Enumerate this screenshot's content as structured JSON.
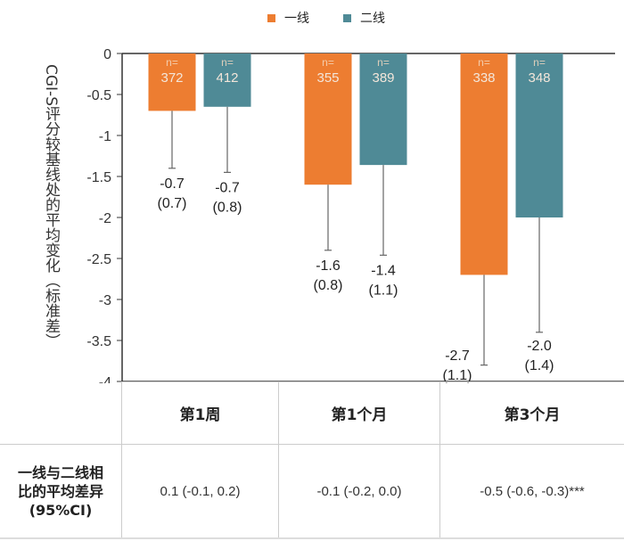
{
  "chart_data": {
    "type": "bar",
    "ylabel": "CGI-S评分较基线处的平均变化（标准差）",
    "ylim": [
      -4,
      0
    ],
    "yticks": [
      "0",
      "-0.5",
      "-1",
      "-1.5",
      "-2",
      "-2.5",
      "-3",
      "-3.5",
      "-4"
    ],
    "legend_position": "top-center",
    "categories": [
      "第1周",
      "第1个月",
      "第3个月"
    ],
    "series": [
      {
        "name": "一线",
        "color": "#ED7D31",
        "values": [
          -0.7,
          -1.6,
          -2.7
        ],
        "sd": [
          0.7,
          0.8,
          1.1
        ],
        "n": [
          "372",
          "355",
          "338"
        ],
        "value_labels": [
          "-0.7",
          "-1.6",
          "-2.7"
        ],
        "sd_labels": [
          "(0.7)",
          "(0.8)",
          "(1.1)"
        ]
      },
      {
        "name": "二线",
        "color": "#4F8A96",
        "values": [
          -0.65,
          -1.36,
          -2.0
        ],
        "sd": [
          0.8,
          1.1,
          1.4
        ],
        "n": [
          "412",
          "389",
          "348"
        ],
        "value_labels": [
          "-0.7",
          "-1.4",
          "-2.0"
        ],
        "sd_labels": [
          "(0.8)",
          "(1.1)",
          "(1.4)"
        ]
      }
    ],
    "n_prefix": "n="
  },
  "table": {
    "row_label": [
      "一线与二线相",
      "比的平均差异",
      "(95%CI)"
    ],
    "headers": [
      "第1周",
      "第1个月",
      "第3个月"
    ],
    "values": [
      "0.1 (-0.1, 0.2)",
      "-0.1 (-0.2, 0.0)",
      "-0.5 (-0.6, -0.3)***"
    ]
  }
}
